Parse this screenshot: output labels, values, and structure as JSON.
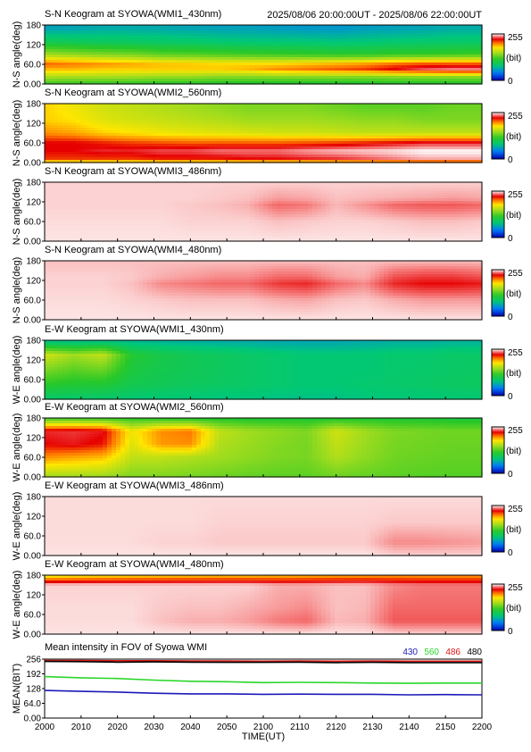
{
  "header": {
    "range": "2025/08/06 20:00:00UT - 2025/08/06 22:00:00UT"
  },
  "colorbar": {
    "max": "255",
    "min": "0",
    "unit": "(bit)"
  },
  "chart_data": [
    {
      "type": "heatmap",
      "title": "S-N Keogram at SYOWA(WMI1_430nm)",
      "ylabel": "N-S angle(deg)",
      "yticks": [
        "180",
        "120",
        "60.0",
        "0.00"
      ],
      "ylim": [
        0,
        180
      ],
      "description_rows": [
        {
          "angle": 170,
          "values": [
            60,
            62,
            65,
            65,
            64,
            62,
            60,
            60,
            58,
            56,
            55,
            58,
            60,
            62,
            66,
            66
          ]
        },
        {
          "angle": 130,
          "values": [
            95,
            92,
            90,
            88,
            86,
            85,
            82,
            80,
            80,
            80,
            78,
            80,
            82,
            84,
            85,
            86
          ]
        },
        {
          "angle": 90,
          "values": [
            150,
            145,
            140,
            138,
            130,
            128,
            125,
            122,
            120,
            118,
            115,
            115,
            118,
            118,
            120,
            122
          ]
        },
        {
          "angle": 60,
          "values": [
            210,
            205,
            200,
            195,
            190,
            188,
            185,
            185,
            185,
            190,
            195,
            200,
            210,
            215,
            215,
            215
          ]
        },
        {
          "angle": 45,
          "values": [
            190,
            190,
            185,
            185,
            185,
            185,
            185,
            190,
            200,
            205,
            210,
            215,
            225,
            235,
            240,
            240
          ]
        },
        {
          "angle": 20,
          "values": [
            150,
            150,
            150,
            148,
            145,
            145,
            140,
            140,
            140,
            140,
            140,
            138,
            140,
            140,
            140,
            140
          ]
        },
        {
          "angle": 0,
          "values": [
            120,
            118,
            115,
            115,
            112,
            112,
            110,
            108,
            108,
            108,
            108,
            108,
            110,
            110,
            110,
            110
          ]
        }
      ]
    },
    {
      "type": "heatmap",
      "title": "S-N Keogram at SYOWA(WMI2_560nm)",
      "ylabel": "N-S angle(deg)",
      "yticks": [
        "180",
        "120",
        "60.0",
        "0.00"
      ],
      "ylim": [
        0,
        180
      ],
      "description_rows": [
        {
          "angle": 170,
          "values": [
            185,
            175,
            165,
            160,
            155,
            150,
            145,
            140,
            140,
            140,
            135,
            130,
            130,
            130,
            135,
            135
          ]
        },
        {
          "angle": 130,
          "values": [
            185,
            180,
            170,
            165,
            162,
            158,
            155,
            150,
            150,
            150,
            148,
            145,
            145,
            140,
            140,
            140
          ]
        },
        {
          "angle": 90,
          "values": [
            200,
            195,
            185,
            180,
            175,
            172,
            170,
            168,
            165,
            165,
            162,
            160,
            160,
            160,
            160,
            160
          ]
        },
        {
          "angle": 60,
          "values": [
            225,
            225,
            220,
            215,
            212,
            210,
            210,
            210,
            210,
            212,
            215,
            220,
            225,
            230,
            230,
            230
          ]
        },
        {
          "angle": 35,
          "values": [
            225,
            225,
            230,
            230,
            235,
            235,
            240,
            240,
            240,
            245,
            248,
            250,
            252,
            255,
            255,
            255
          ]
        },
        {
          "angle": 10,
          "values": [
            215,
            215,
            215,
            215,
            220,
            220,
            220,
            225,
            225,
            228,
            230,
            235,
            240,
            245,
            245,
            245
          ]
        },
        {
          "angle": 0,
          "values": [
            170,
            170,
            170,
            170,
            172,
            172,
            172,
            175,
            175,
            175,
            178,
            178,
            180,
            180,
            180,
            180
          ]
        }
      ]
    },
    {
      "type": "heatmap",
      "title": "S-N Keogram at SYOWA(WMI3_486nm)",
      "ylabel": "N-S angle(deg)",
      "yticks": [
        "180",
        "120",
        "60.0",
        "0.00"
      ],
      "ylim": [
        0,
        180
      ],
      "description_rows": [
        {
          "angle": 180,
          "values": [
            250,
            250,
            250,
            250,
            250,
            250,
            250,
            250,
            250,
            250,
            250,
            250,
            250,
            250,
            250,
            250
          ]
        },
        {
          "angle": 130,
          "values": [
            250,
            250,
            250,
            250,
            250,
            250,
            249,
            248,
            244,
            245,
            248,
            247,
            246,
            245,
            244,
            245
          ]
        },
        {
          "angle": 110,
          "values": [
            250,
            250,
            250,
            250,
            250,
            249,
            248,
            246,
            238,
            240,
            247,
            243,
            238,
            236,
            236,
            238
          ]
        },
        {
          "angle": 60,
          "values": [
            251,
            251,
            251,
            251,
            251,
            250,
            250,
            250,
            248,
            249,
            250,
            250,
            249,
            248,
            248,
            249
          ]
        },
        {
          "angle": 0,
          "values": [
            252,
            252,
            252,
            252,
            252,
            252,
            252,
            252,
            252,
            252,
            252,
            252,
            252,
            252,
            252,
            252
          ]
        }
      ]
    },
    {
      "type": "heatmap",
      "title": "S-N Keogram at SYOWA(WMI4_480nm)",
      "ylabel": "N-S angle(deg)",
      "yticks": [
        "180",
        "120",
        "60.0",
        "0.00"
      ],
      "ylim": [
        0,
        180
      ],
      "description_rows": [
        {
          "angle": 180,
          "values": [
            248,
            248,
            248,
            248,
            248,
            248,
            248,
            248,
            248,
            248,
            248,
            248,
            248,
            248,
            248,
            248
          ]
        },
        {
          "angle": 130,
          "values": [
            250,
            250,
            250,
            249,
            246,
            244,
            242,
            242,
            238,
            238,
            244,
            246,
            235,
            232,
            232,
            235
          ]
        },
        {
          "angle": 110,
          "values": [
            250,
            250,
            250,
            248,
            242,
            240,
            238,
            238,
            232,
            230,
            238,
            242,
            230,
            226,
            226,
            228
          ]
        },
        {
          "angle": 60,
          "values": [
            251,
            251,
            251,
            250,
            249,
            248,
            248,
            248,
            246,
            245,
            248,
            249,
            246,
            244,
            244,
            244
          ]
        },
        {
          "angle": 0,
          "values": [
            252,
            252,
            252,
            252,
            252,
            252,
            252,
            252,
            252,
            252,
            252,
            252,
            252,
            252,
            252,
            252
          ]
        }
      ]
    },
    {
      "type": "heatmap",
      "title": "E-W Keogram at SYOWA(WMI1_430nm)",
      "ylabel": "W-E angle(deg)",
      "yticks": [
        "180",
        "120",
        "60.0",
        "0.00"
      ],
      "ylim": [
        0,
        180
      ],
      "description_rows": [
        {
          "angle": 180,
          "values": [
            70,
            70,
            70,
            70,
            68,
            66,
            65,
            64,
            62,
            62,
            62,
            64,
            66,
            66,
            68,
            68
          ]
        },
        {
          "angle": 135,
          "values": [
            165,
            150,
            160,
            110,
            100,
            95,
            92,
            88,
            85,
            82,
            82,
            82,
            85,
            85,
            88,
            88
          ]
        },
        {
          "angle": 90,
          "values": [
            140,
            130,
            135,
            105,
            98,
            95,
            92,
            88,
            85,
            82,
            82,
            82,
            85,
            86,
            88,
            90
          ]
        },
        {
          "angle": 45,
          "values": [
            115,
            110,
            110,
            98,
            95,
            92,
            90,
            88,
            85,
            82,
            82,
            85,
            86,
            88,
            90,
            92
          ]
        },
        {
          "angle": 0,
          "values": [
            85,
            85,
            85,
            82,
            80,
            80,
            78,
            78,
            76,
            76,
            76,
            78,
            80,
            80,
            82,
            82
          ]
        }
      ]
    },
    {
      "type": "heatmap",
      "title": "E-W Keogram at SYOWA(WMI2_560nm)",
      "ylabel": "W-E angle(deg)",
      "yticks": [
        "180",
        "120",
        "60.0",
        "0.00"
      ],
      "ylim": [
        0,
        180
      ],
      "description_rows": [
        {
          "angle": 180,
          "values": [
            120,
            120,
            118,
            115,
            112,
            110,
            110,
            108,
            108,
            108,
            110,
            110,
            108,
            108,
            106,
            106
          ]
        },
        {
          "angle": 140,
          "values": [
            230,
            232,
            228,
            175,
            200,
            205,
            160,
            150,
            145,
            140,
            165,
            150,
            140,
            138,
            136,
            136
          ]
        },
        {
          "angle": 100,
          "values": [
            225,
            228,
            222,
            170,
            198,
            200,
            155,
            148,
            142,
            138,
            160,
            148,
            138,
            136,
            134,
            134
          ]
        },
        {
          "angle": 60,
          "values": [
            200,
            195,
            190,
            160,
            160,
            155,
            150,
            145,
            140,
            138,
            155,
            145,
            136,
            134,
            132,
            132
          ]
        },
        {
          "angle": 0,
          "values": [
            150,
            150,
            148,
            140,
            140,
            138,
            135,
            132,
            130,
            130,
            135,
            132,
            130,
            128,
            128,
            128
          ]
        }
      ]
    },
    {
      "type": "heatmap",
      "title": "E-W Keogram at SYOWA(WMI3_486nm)",
      "ylabel": "W-E angle(deg)",
      "yticks": [
        "180",
        "120",
        "60.0",
        "0.00"
      ],
      "ylim": [
        0,
        180
      ],
      "description_rows": [
        {
          "angle": 180,
          "values": [
            251,
            251,
            251,
            251,
            251,
            251,
            251,
            251,
            251,
            251,
            251,
            251,
            251,
            251,
            251,
            251
          ]
        },
        {
          "angle": 100,
          "values": [
            251,
            251,
            251,
            251,
            251,
            251,
            250,
            250,
            250,
            250,
            250,
            250,
            249,
            249,
            249,
            249
          ]
        },
        {
          "angle": 40,
          "values": [
            251,
            251,
            251,
            251,
            250,
            250,
            249,
            249,
            249,
            249,
            249,
            249,
            242,
            242,
            243,
            244
          ]
        },
        {
          "angle": 0,
          "values": [
            252,
            252,
            252,
            252,
            252,
            252,
            252,
            252,
            252,
            252,
            252,
            252,
            250,
            250,
            250,
            250
          ]
        }
      ]
    },
    {
      "type": "heatmap",
      "title": "E-W Keogram at SYOWA(WMI4_480nm)",
      "ylabel": "W-E angle(deg)",
      "yticks": [
        "180",
        "120",
        "60.0",
        "0.00"
      ],
      "ylim": [
        0,
        180
      ],
      "description_rows": [
        {
          "angle": 180,
          "values": [
            170,
            175,
            178,
            180,
            182,
            184,
            186,
            186,
            188,
            190,
            192,
            194,
            196,
            196,
            196,
            196
          ]
        },
        {
          "angle": 150,
          "values": [
            250,
            250,
            250,
            250,
            250,
            250,
            250,
            250,
            246,
            246,
            248,
            248,
            242,
            240,
            240,
            240
          ]
        },
        {
          "angle": 80,
          "values": [
            251,
            251,
            251,
            251,
            249,
            248,
            248,
            246,
            244,
            242,
            248,
            247,
            238,
            238,
            238,
            238
          ]
        },
        {
          "angle": 40,
          "values": [
            251,
            251,
            251,
            251,
            248,
            246,
            246,
            244,
            240,
            238,
            247,
            246,
            236,
            236,
            236,
            236
          ]
        },
        {
          "angle": 0,
          "values": [
            252,
            252,
            252,
            252,
            252,
            252,
            252,
            252,
            252,
            252,
            252,
            252,
            250,
            250,
            250,
            250
          ]
        }
      ]
    },
    {
      "type": "line",
      "title": "Mean intensity in FOV of Syowa WMI",
      "xlabel": "TIME(UT)",
      "ylabel": "MEAN(BIT)",
      "xticks": [
        "2000",
        "2010",
        "2020",
        "2030",
        "2040",
        "2050",
        "2100",
        "2110",
        "2120",
        "2130",
        "2140",
        "2150",
        "2200"
      ],
      "yticks": [
        "256",
        "192",
        "128",
        "64.0",
        "0.00"
      ],
      "ylim": [
        0,
        256
      ],
      "x": [
        2000,
        2010,
        2020,
        2030,
        2040,
        2050,
        2100,
        2110,
        2120,
        2130,
        2140,
        2150,
        2200
      ],
      "series": [
        {
          "name": "430",
          "color": "#1a1ab8",
          "values": [
            120,
            116,
            113,
            108,
            105,
            105,
            103,
            104,
            103,
            103,
            101,
            102,
            101
          ]
        },
        {
          "name": "560",
          "color": "#2ad62a",
          "values": [
            180,
            175,
            172,
            165,
            160,
            158,
            154,
            155,
            154,
            152,
            151,
            152,
            152
          ]
        },
        {
          "name": "486",
          "color": "#d81818",
          "values": [
            250,
            250,
            249,
            249,
            248,
            248,
            247,
            248,
            247,
            248,
            247,
            247,
            247
          ]
        },
        {
          "name": "480",
          "color": "#000000",
          "values": [
            246,
            245,
            243,
            244,
            243,
            242,
            242,
            243,
            241,
            242,
            241,
            241,
            241
          ]
        }
      ]
    }
  ]
}
